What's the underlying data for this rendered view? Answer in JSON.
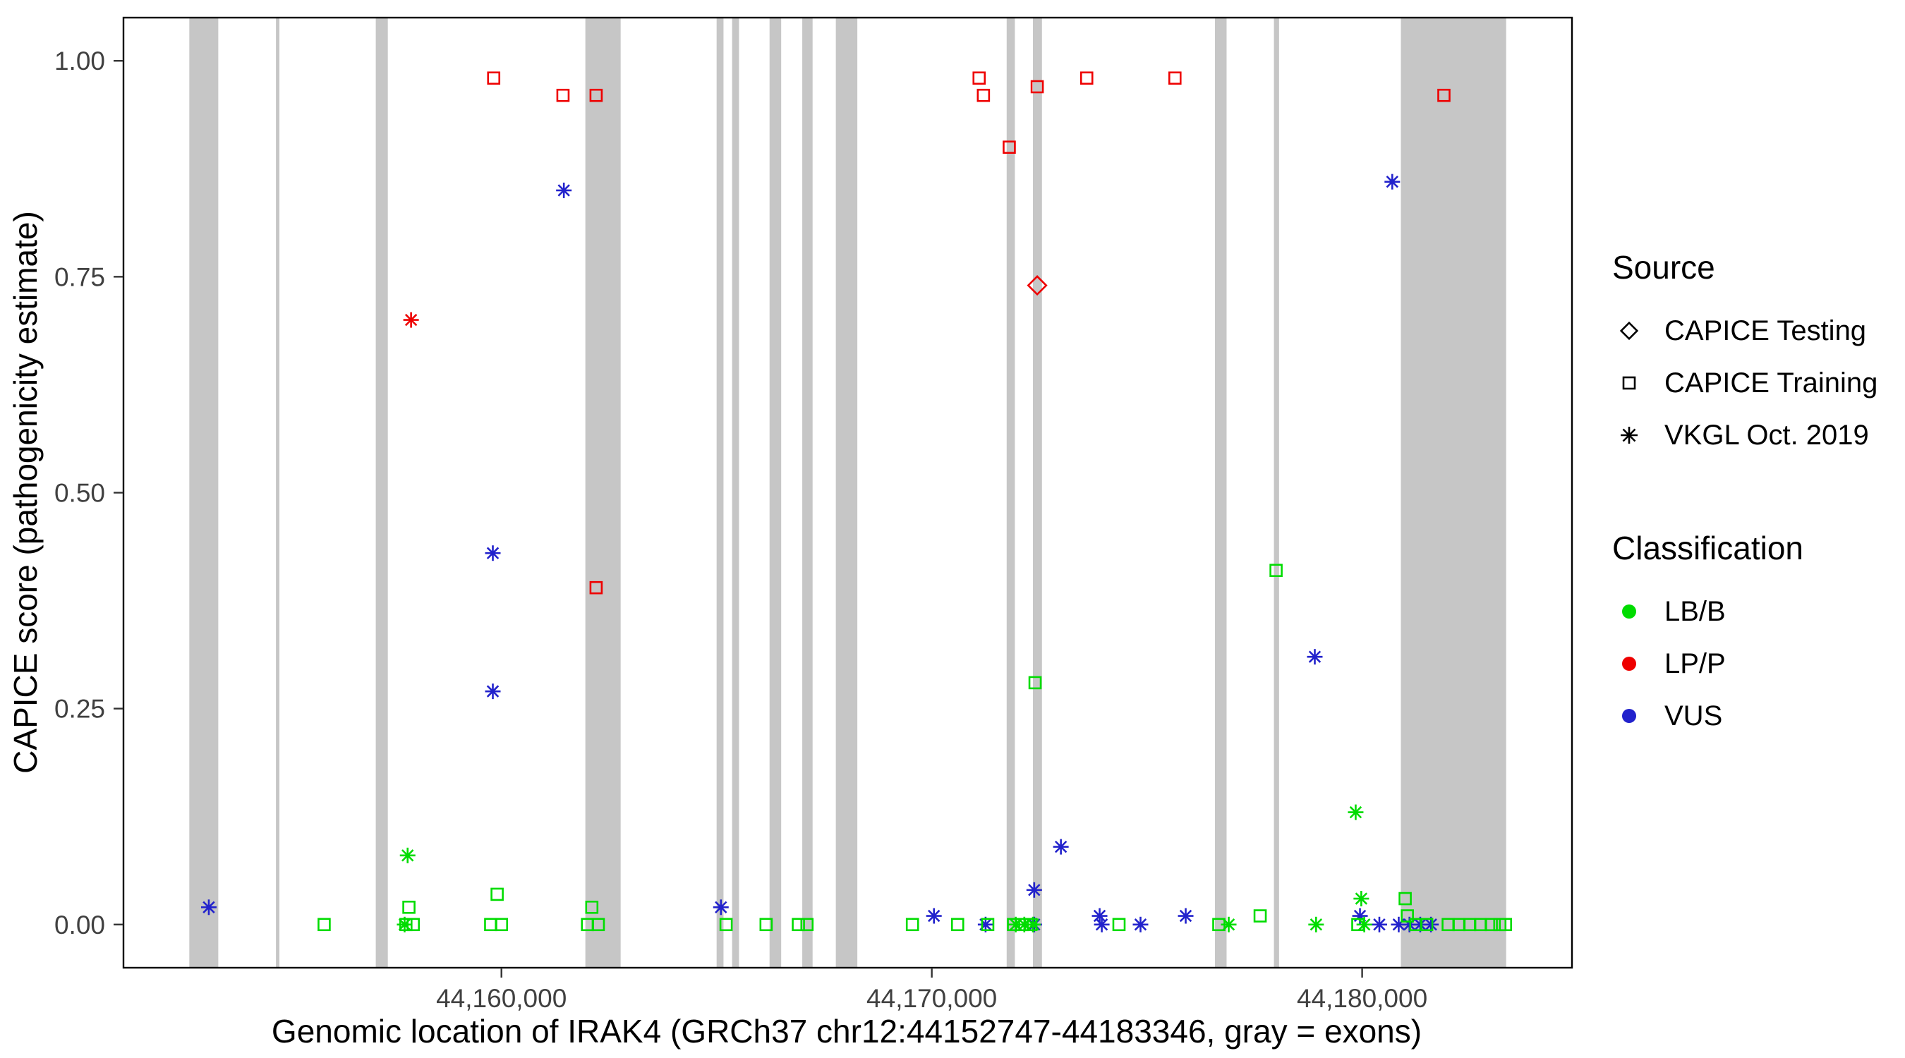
{
  "page": {
    "background": "#FFFFFF"
  },
  "legend": {
    "source": {
      "title": "Source",
      "items": [
        {
          "label": "CAPICE Testing",
          "shape": "diamond"
        },
        {
          "label": "CAPICE Training",
          "shape": "square"
        },
        {
          "label": "VKGL Oct. 2019",
          "shape": "asterisk"
        }
      ]
    },
    "classification": {
      "title": "Classification",
      "items": [
        {
          "label": "LB/B",
          "color": "#00DC00"
        },
        {
          "label": "LP/P",
          "color": "#EE0000"
        },
        {
          "label": "VUS",
          "color": "#2222CC"
        }
      ]
    }
  },
  "chart_data": {
    "type": "scatter",
    "title": "",
    "xlabel": "Genomic location of IRAK4 (GRCh37 chr12:44152747-44183346, gray = exons)",
    "ylabel": "CAPICE score (pathogenicity estimate)",
    "xlim": [
      44151217,
      44184876
    ],
    "ylim": [
      -0.05,
      1.05
    ],
    "x_tick_values": [
      44160000,
      44170000,
      44180000
    ],
    "x_tick_labels": [
      "44,160,000",
      "44,170,000",
      "44,180,000"
    ],
    "y_tick_values": [
      0,
      0.25,
      0.5,
      0.75,
      1
    ],
    "y_tick_labels": [
      "0.00",
      "0.25",
      "0.50",
      "0.75",
      "1.00"
    ],
    "grid": false,
    "legend_position": "right",
    "exon_color": "#C6C6C6",
    "exons": [
      [
        44152747,
        44153420
      ],
      [
        44154760,
        44154840
      ],
      [
        44157080,
        44157360
      ],
      [
        44161950,
        44162770
      ],
      [
        44165000,
        44165160
      ],
      [
        44165360,
        44165520
      ],
      [
        44166230,
        44166500
      ],
      [
        44166990,
        44167230
      ],
      [
        44167770,
        44168270
      ],
      [
        44171740,
        44171930
      ],
      [
        44172350,
        44172560
      ],
      [
        44176580,
        44176850
      ],
      [
        44177950,
        44178070
      ],
      [
        44180900,
        44183346
      ]
    ],
    "series": [
      {
        "name": "LP/P - CAPICE Training",
        "source": "CAPICE Training",
        "classification": "LP/P",
        "shape": "square",
        "color": "#EE0000",
        "points": [
          [
            44159820,
            0.98
          ],
          [
            44161430,
            0.96
          ],
          [
            44162200,
            0.96
          ],
          [
            44162200,
            0.39
          ],
          [
            44171100,
            0.98
          ],
          [
            44171200,
            0.96
          ],
          [
            44171800,
            0.9
          ],
          [
            44172450,
            0.97
          ],
          [
            44173600,
            0.98
          ],
          [
            44175650,
            0.98
          ],
          [
            44181900,
            0.96
          ]
        ]
      },
      {
        "name": "LP/P - CAPICE Testing",
        "source": "CAPICE Testing",
        "classification": "LP/P",
        "shape": "diamond",
        "color": "#EE0000",
        "points": [
          [
            44172450,
            0.74
          ]
        ]
      },
      {
        "name": "LP/P - VKGL Oct. 2019",
        "source": "VKGL Oct. 2019",
        "classification": "LP/P",
        "shape": "asterisk",
        "color": "#EE0000",
        "points": [
          [
            44157900,
            0.7
          ]
        ]
      },
      {
        "name": "VUS - VKGL Oct. 2019",
        "source": "VKGL Oct. 2019",
        "classification": "VUS",
        "shape": "asterisk",
        "color": "#2222CC",
        "points": [
          [
            44153200,
            0.02
          ],
          [
            44159800,
            0.43
          ],
          [
            44159800,
            0.27
          ],
          [
            44161450,
            0.85
          ],
          [
            44165100,
            0.02
          ],
          [
            44170050,
            0.01
          ],
          [
            44171250,
            0.0
          ],
          [
            44172380,
            0.04
          ],
          [
            44172380,
            0.0
          ],
          [
            44173000,
            0.09
          ],
          [
            44173900,
            0.01
          ],
          [
            44173950,
            0.0
          ],
          [
            44174850,
            0.0
          ],
          [
            44175900,
            0.01
          ],
          [
            44178900,
            0.31
          ],
          [
            44179950,
            0.01
          ],
          [
            44180700,
            0.86
          ],
          [
            44180400,
            0.0
          ],
          [
            44180850,
            0.0
          ],
          [
            44181100,
            0.0
          ],
          [
            44181350,
            0.0
          ],
          [
            44181600,
            0.0
          ]
        ]
      },
      {
        "name": "LB/B - CAPICE Training",
        "source": "CAPICE Training",
        "classification": "LB/B",
        "shape": "square",
        "color": "#00DC00",
        "points": [
          [
            44155880,
            0.0
          ],
          [
            44157850,
            0.02
          ],
          [
            44157780,
            0.0
          ],
          [
            44157950,
            0.0
          ],
          [
            44159900,
            0.035
          ],
          [
            44159750,
            0.0
          ],
          [
            44160000,
            0.0
          ],
          [
            44162100,
            0.02
          ],
          [
            44162000,
            0.0
          ],
          [
            44162250,
            0.0
          ],
          [
            44165220,
            0.0
          ],
          [
            44166150,
            0.0
          ],
          [
            44166900,
            0.0
          ],
          [
            44167100,
            0.0
          ],
          [
            44169550,
            0.0
          ],
          [
            44170600,
            0.0
          ],
          [
            44171300,
            0.0
          ],
          [
            44171900,
            0.0
          ],
          [
            44172100,
            0.0
          ],
          [
            44172400,
            0.28
          ],
          [
            44172300,
            0.0
          ],
          [
            44174350,
            0.0
          ],
          [
            44176670,
            0.0
          ],
          [
            44177630,
            0.01
          ],
          [
            44178000,
            0.41
          ],
          [
            44179900,
            0.0
          ],
          [
            44181000,
            0.03
          ],
          [
            44181050,
            0.01
          ],
          [
            44181250,
            0.0
          ],
          [
            44181500,
            0.0
          ],
          [
            44182000,
            0.0
          ],
          [
            44182250,
            0.0
          ],
          [
            44182500,
            0.0
          ],
          [
            44182750,
            0.0
          ],
          [
            44183000,
            0.0
          ],
          [
            44183200,
            0.0
          ],
          [
            44183330,
            0.0
          ]
        ]
      },
      {
        "name": "LB/B - VKGL Oct. 2019",
        "source": "VKGL Oct. 2019",
        "classification": "LB/B",
        "shape": "asterisk",
        "color": "#00DC00",
        "points": [
          [
            44157820,
            0.08
          ],
          [
            44157750,
            0.0
          ],
          [
            44171950,
            0.0
          ],
          [
            44172150,
            0.0
          ],
          [
            44172350,
            0.0
          ],
          [
            44176900,
            0.0
          ],
          [
            44178930,
            0.0
          ],
          [
            44179850,
            0.13
          ],
          [
            44179980,
            0.03
          ],
          [
            44180050,
            0.0
          ]
        ]
      }
    ]
  }
}
